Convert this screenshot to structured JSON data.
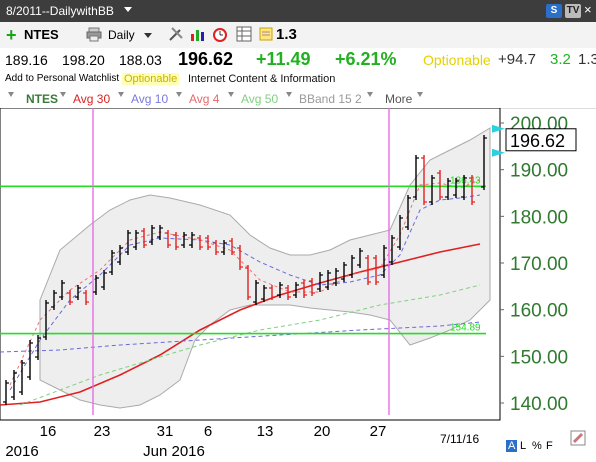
{
  "window": {
    "title": "8/2011--DailywithBB",
    "badges": [
      "S",
      "TV"
    ],
    "close_glyph": "×"
  },
  "toolbar": {
    "symbol": "NTES",
    "period": "Daily",
    "value": "1.3",
    "icons": [
      "add-icon",
      "printer-icon",
      "tools-icon",
      "bar-chart-icon",
      "alarm-clock-icon",
      "table-icon",
      "note-icon"
    ]
  },
  "quote": {
    "open": "189.16",
    "high": "198.20",
    "low": "188.03",
    "last": "196.62",
    "change": "+11.49",
    "change_pct": "+6.21%",
    "optionable": "Optionable",
    "extra_value": "+94.7",
    "extra_small": "3.2",
    "extra_trailing": "1.3"
  },
  "info": {
    "watchlist": "Add to Personal Watchlist",
    "optionable": "Optionable",
    "industry": "Internet Content & Information"
  },
  "legend": {
    "items": [
      {
        "label": "NTES",
        "color": "#3a7a3a"
      },
      {
        "label": "Avg 30",
        "color": "#d22"
      },
      {
        "label": "Avg 10",
        "color": "#7a7adc"
      },
      {
        "label": "Avg 4",
        "color": "#e86a6a"
      },
      {
        "label": "Avg 50",
        "color": "#7fd07f"
      },
      {
        "label": "BBand 15 2",
        "color": "#999"
      },
      {
        "label": "More",
        "color": "#555"
      }
    ]
  },
  "chart_data": {
    "type": "ohlc",
    "price_labels": [
      "200.00",
      "190.00",
      "180.00",
      "170.00",
      "160.00",
      "150.00",
      "140.00"
    ],
    "current_price_label": "196.62",
    "x_labels": [
      "16",
      "23",
      "31",
      "6",
      "13",
      "20",
      "27"
    ],
    "month_labels": [
      "2016",
      "Jun 2016"
    ],
    "trendlines": [
      {
        "label": "186.43",
        "value": 186.43
      },
      {
        "label": "154.89",
        "value": 154.89
      }
    ],
    "timestamp": "7/11/16",
    "colors": {
      "up": "#000000",
      "down": "#e02020",
      "ma30": "#e02020",
      "ma10": "#6a6adc",
      "ma4": "#f07070",
      "ma50": "#80d080",
      "bband": "#aaaaaa",
      "trend": "#22dd22",
      "vline": "#e66ee6",
      "axis_text": "#2f7a2f"
    }
  },
  "footer": {
    "letters": [
      "A",
      "L",
      "%",
      "F"
    ]
  }
}
